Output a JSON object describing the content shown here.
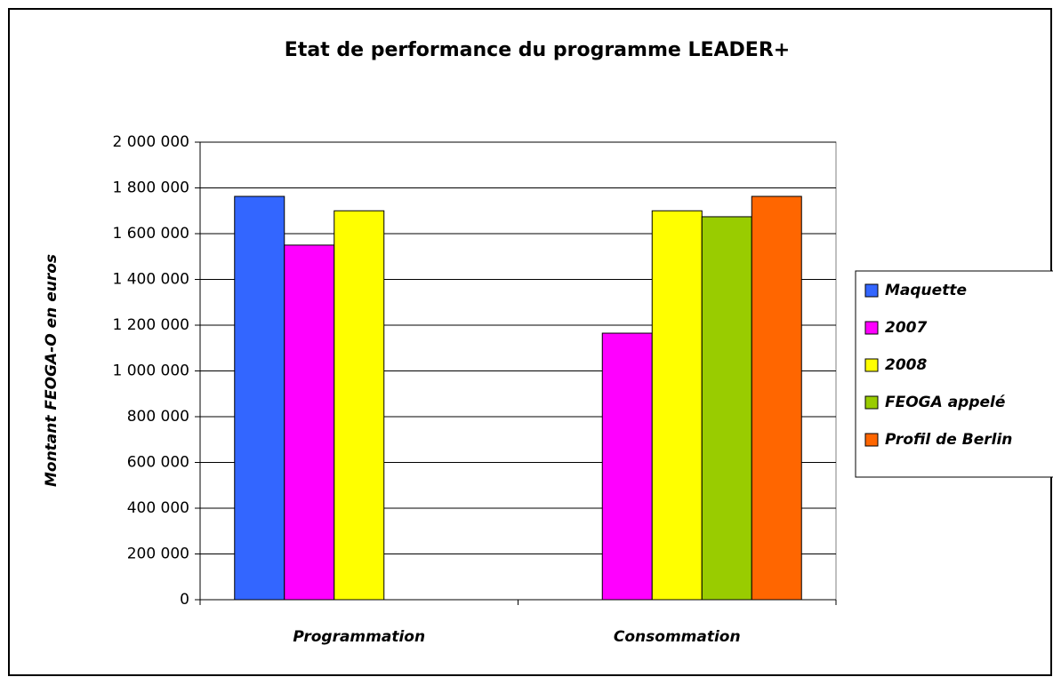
{
  "chart_data": {
    "type": "bar",
    "title": "Etat de performance du programme LEADER+",
    "y_label": "Montant FEOGA-O en euros",
    "categories": [
      "Programmation",
      "Consommation"
    ],
    "series": [
      {
        "name": "Maquette",
        "color": "#3366ff",
        "values": [
          1763000,
          null
        ]
      },
      {
        "name": "2007",
        "color": "#ff00ff",
        "values": [
          1550000,
          1165000
        ]
      },
      {
        "name": "2008",
        "color": "#ffff00",
        "values": [
          1700000,
          1700000
        ]
      },
      {
        "name": "FEOGA appelé",
        "color": "#99cc00",
        "values": [
          null,
          1674000
        ]
      },
      {
        "name": "Profil de Berlin",
        "color": "#ff6600",
        "values": [
          null,
          1763000
        ]
      }
    ],
    "ylim": [
      0,
      2000000
    ],
    "yticks": [
      0,
      {
        "value": 200000,
        "label": "200 000"
      },
      {
        "value": 400000,
        "label": "400 000"
      },
      {
        "value": 600000,
        "label": "600 000"
      },
      {
        "value": 800000,
        "label": "800 000"
      },
      {
        "value": 1000000,
        "label": "1 000 000"
      },
      {
        "value": 1200000,
        "label": "1 200 000"
      },
      {
        "value": 1400000,
        "label": "1 400 000"
      },
      {
        "value": 1600000,
        "label": "1 600 000"
      },
      {
        "value": 1800000,
        "label": "1 800 000"
      },
      {
        "value": 2000000,
        "label": "2 000 000"
      }
    ],
    "grid": true,
    "legend": "right"
  }
}
